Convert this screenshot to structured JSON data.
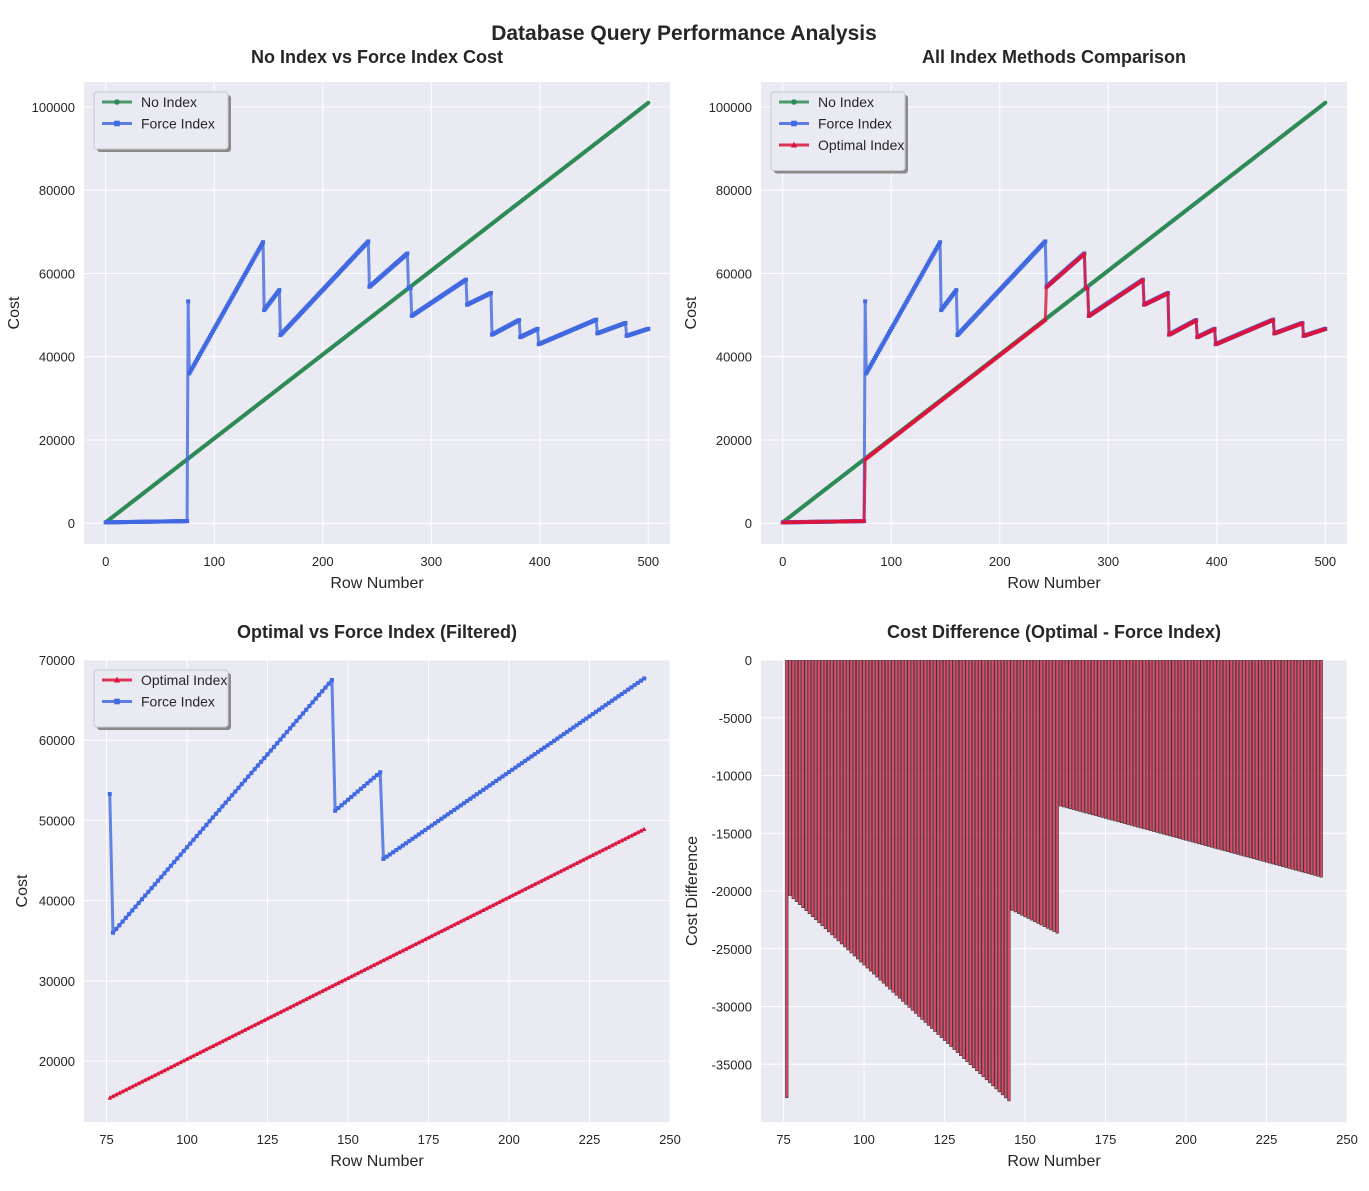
{
  "suptitle": "Database Query Performance Analysis",
  "colors": {
    "no_index": "#2e8b57",
    "force_index": "#4169e1",
    "optimal_index": "#dc143c",
    "axes_bg": "#eaeaf2",
    "grid": "#ffffff"
  },
  "chart_data": [
    {
      "id": "a",
      "type": "line",
      "title": "No Index vs Force Index Cost",
      "xlabel": "Row Number",
      "ylabel": "Cost",
      "xlim": [
        -20,
        520
      ],
      "ylim": [
        -5000,
        106000
      ],
      "xticks": [
        0,
        100,
        200,
        300,
        400,
        500
      ],
      "yticks": [
        0,
        20000,
        40000,
        60000,
        80000,
        100000
      ],
      "grid": true,
      "legend": "top-left",
      "series": [
        {
          "name": "No Index",
          "key": "noindex",
          "marker": "circle"
        },
        {
          "name": "Force Index",
          "key": "force",
          "marker": "square"
        }
      ]
    },
    {
      "id": "b",
      "type": "line",
      "title": "All Index Methods Comparison",
      "xlabel": "Row Number",
      "ylabel": "Cost",
      "xlim": [
        -20,
        520
      ],
      "ylim": [
        -5000,
        106000
      ],
      "xticks": [
        0,
        100,
        200,
        300,
        400,
        500
      ],
      "yticks": [
        0,
        20000,
        40000,
        60000,
        80000,
        100000
      ],
      "grid": true,
      "legend": "top-left",
      "series": [
        {
          "name": "No Index",
          "key": "noindex",
          "marker": "circle"
        },
        {
          "name": "Force Index",
          "key": "force",
          "marker": "square"
        },
        {
          "name": "Optimal Index",
          "key": "optimal",
          "marker": "triangle"
        }
      ]
    },
    {
      "id": "c",
      "type": "line",
      "title": "Optimal vs Force Index (Filtered)",
      "xlabel": "Row Number",
      "ylabel": "Cost",
      "xlim": [
        68,
        250
      ],
      "ylim": [
        12400,
        70000
      ],
      "xticks": [
        75,
        100,
        125,
        150,
        175,
        200,
        225,
        250
      ],
      "yticks": [
        20000,
        30000,
        40000,
        50000,
        60000,
        70000
      ],
      "grid": true,
      "legend": "top-left",
      "series": [
        {
          "name": "Optimal Index",
          "key": "optimal_f",
          "marker": "triangle"
        },
        {
          "name": "Force Index",
          "key": "force_f",
          "marker": "square"
        }
      ]
    },
    {
      "id": "d",
      "type": "bar",
      "title": "Cost Difference (Optimal - Force Index)",
      "xlabel": "Row Number",
      "ylabel": "Cost Difference",
      "xlim": [
        68,
        250
      ],
      "ylim": [
        -40000,
        0
      ],
      "xticks": [
        75,
        100,
        125,
        150,
        175,
        200,
        225,
        250
      ],
      "yticks": [
        0,
        -5000,
        -10000,
        -15000,
        -20000,
        -25000,
        -30000,
        -35000
      ],
      "grid": true
    }
  ],
  "series_model": {
    "x_range": [
      0,
      500
    ],
    "filtered_x_range": [
      76,
      242
    ],
    "no_index": {
      "at_0": 200,
      "at_500": 101000
    },
    "force_index_segments": [
      {
        "x": [
          0,
          75
        ],
        "y": [
          200,
          500
        ]
      },
      {
        "x": [
          76,
          76
        ],
        "y": [
          53300,
          53300
        ]
      },
      {
        "x": [
          77,
          145
        ],
        "y": [
          36000,
          67500
        ]
      },
      {
        "x": [
          146,
          160
        ],
        "y": [
          51200,
          56000
        ]
      },
      {
        "x": [
          161,
          242
        ],
        "y": [
          45200,
          67700
        ]
      },
      {
        "x": [
          243,
          278
        ],
        "y": [
          56800,
          64800
        ]
      },
      {
        "x": [
          279,
          281
        ],
        "y": [
          56500,
          56500
        ]
      },
      {
        "x": [
          282,
          332
        ],
        "y": [
          49800,
          58500
        ]
      },
      {
        "x": [
          333,
          355
        ],
        "y": [
          52500,
          55300
        ]
      },
      {
        "x": [
          356,
          381
        ],
        "y": [
          45300,
          48800
        ]
      },
      {
        "x": [
          382,
          398
        ],
        "y": [
          44700,
          46700
        ]
      },
      {
        "x": [
          399,
          452
        ],
        "y": [
          43000,
          48900
        ]
      },
      {
        "x": [
          453,
          479
        ],
        "y": [
          45600,
          48100
        ]
      },
      {
        "x": [
          480,
          500
        ],
        "y": [
          45000,
          46700
        ]
      }
    ],
    "optimal_index_segments": [
      {
        "x": [
          0,
          75
        ],
        "y": [
          200,
          500
        ]
      },
      {
        "x": [
          76,
          242
        ],
        "y": [
          15400,
          48900
        ]
      },
      {
        "x": [
          243,
          278
        ],
        "y": [
          56800,
          64800
        ]
      },
      {
        "x": [
          279,
          281
        ],
        "y": [
          56500,
          56500
        ]
      },
      {
        "x": [
          282,
          332
        ],
        "y": [
          49800,
          58500
        ]
      },
      {
        "x": [
          333,
          355
        ],
        "y": [
          52500,
          55300
        ]
      },
      {
        "x": [
          356,
          381
        ],
        "y": [
          45300,
          48800
        ]
      },
      {
        "x": [
          382,
          398
        ],
        "y": [
          44700,
          46700
        ]
      },
      {
        "x": [
          399,
          452
        ],
        "y": [
          43000,
          48900
        ]
      },
      {
        "x": [
          453,
          479
        ],
        "y": [
          45600,
          48100
        ]
      },
      {
        "x": [
          480,
          500
        ],
        "y": [
          45000,
          46700
        ]
      }
    ]
  }
}
